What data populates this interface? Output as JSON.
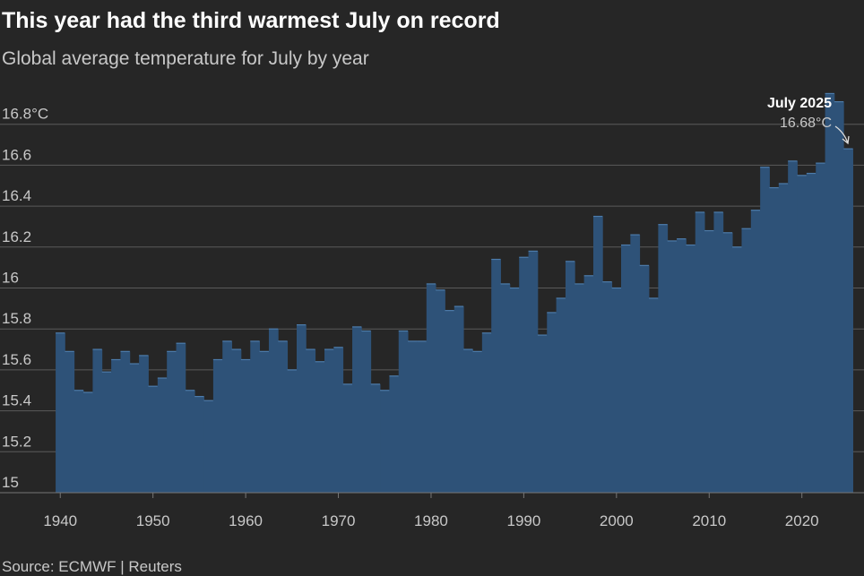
{
  "chart_data": {
    "type": "area",
    "title": "This year had the third warmest July on record",
    "subtitle": "Global average temperature for July by year",
    "source": "Source: ECMWF | Reuters",
    "annotation": {
      "label": "July 2025",
      "value_label": "16.68°C"
    },
    "color": "#2e5278",
    "x": [
      1940,
      1941,
      1942,
      1943,
      1944,
      1945,
      1946,
      1947,
      1948,
      1949,
      1950,
      1951,
      1952,
      1953,
      1954,
      1955,
      1956,
      1957,
      1958,
      1959,
      1960,
      1961,
      1962,
      1963,
      1964,
      1965,
      1966,
      1967,
      1968,
      1969,
      1970,
      1971,
      1972,
      1973,
      1974,
      1975,
      1976,
      1977,
      1978,
      1979,
      1980,
      1981,
      1982,
      1983,
      1984,
      1985,
      1986,
      1987,
      1988,
      1989,
      1990,
      1991,
      1992,
      1993,
      1994,
      1995,
      1996,
      1997,
      1998,
      1999,
      2000,
      2001,
      2002,
      2003,
      2004,
      2005,
      2006,
      2007,
      2008,
      2009,
      2010,
      2011,
      2012,
      2013,
      2014,
      2015,
      2016,
      2017,
      2018,
      2019,
      2020,
      2021,
      2022,
      2023,
      2024,
      2025
    ],
    "values": [
      15.78,
      15.69,
      15.5,
      15.49,
      15.7,
      15.59,
      15.65,
      15.69,
      15.63,
      15.67,
      15.52,
      15.56,
      15.69,
      15.73,
      15.5,
      15.47,
      15.45,
      15.65,
      15.74,
      15.7,
      15.65,
      15.74,
      15.69,
      15.8,
      15.74,
      15.6,
      15.82,
      15.7,
      15.64,
      15.7,
      15.71,
      15.53,
      15.81,
      15.79,
      15.53,
      15.5,
      15.57,
      15.79,
      15.74,
      15.74,
      16.02,
      15.99,
      15.89,
      15.91,
      15.7,
      15.69,
      15.78,
      16.14,
      16.02,
      16.0,
      16.15,
      16.18,
      15.77,
      15.88,
      15.95,
      16.13,
      16.02,
      16.06,
      16.35,
      16.03,
      16.0,
      16.21,
      16.26,
      16.11,
      15.95,
      16.31,
      16.23,
      16.24,
      16.21,
      16.37,
      16.28,
      16.37,
      16.27,
      16.2,
      16.29,
      16.38,
      16.59,
      16.49,
      16.51,
      16.62,
      16.55,
      16.56,
      16.61,
      16.95,
      16.91,
      16.68
    ],
    "xlim": [
      1933.5,
      2026.7
    ],
    "xticks": [
      1940,
      1950,
      1960,
      1970,
      1980,
      1990,
      2000,
      2010,
      2020
    ],
    "ylim": [
      15,
      17
    ],
    "yticks": [
      15,
      15.2,
      15.4,
      15.6,
      15.8,
      16,
      16.2,
      16.4,
      16.6,
      {
        "value": 16.8,
        "label": "16.8°C"
      }
    ],
    "grid": true
  }
}
